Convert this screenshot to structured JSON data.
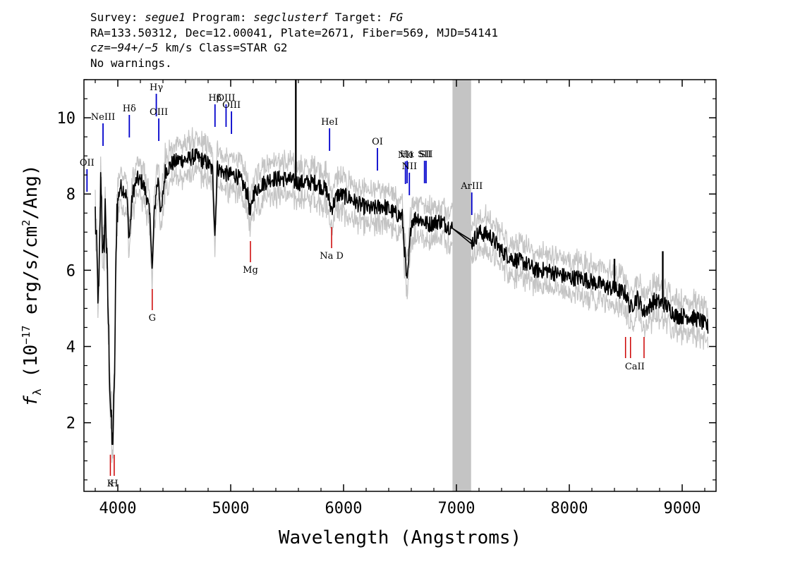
{
  "header": {
    "line1": {
      "survey_label": "Survey: ",
      "survey": "segue1",
      "program_label": " Program: ",
      "program": "segclusterf",
      "target_label": " Target: ",
      "target": "FG"
    },
    "line2": "RA=133.50312, Dec=12.00041, Plate=2671, Fiber=569, MJD=54141",
    "line3": {
      "cz_label": "cz",
      "cz_value": "=−94+/−5",
      "rest": " km/s Class=STAR G2"
    },
    "line4": "No warnings."
  },
  "chart_data": {
    "type": "line",
    "xlabel": "Wavelength (Angstroms)",
    "ylabel": "f_λ (10^-17 erg/s/cm^2/Ang)",
    "xlim": [
      3700,
      9300
    ],
    "ylim": [
      0.2,
      11.0
    ],
    "xticks": [
      4000,
      5000,
      6000,
      7000,
      8000,
      9000
    ],
    "yticks": [
      2,
      4,
      6,
      8,
      10
    ],
    "grid": false,
    "masked_region": [
      6965,
      7130
    ],
    "colors": {
      "flux": "#000000",
      "error_band": "#c4c4c4",
      "emission": "#0000cc",
      "absorption": "#cc0000",
      "sky": "#808080"
    },
    "series": [
      {
        "style": "smoothed-flux",
        "x": [
          3800,
          3830,
          3850,
          3870,
          3890,
          3910,
          3930,
          3950,
          3968,
          3990,
          4020,
          4060,
          4080,
          4101,
          4130,
          4170,
          4220,
          4260,
          4290,
          4305,
          4320,
          4340,
          4360,
          4383,
          4420,
          4480,
          4550,
          4620,
          4680,
          4740,
          4800,
          4840,
          4861,
          4880,
          4920,
          4980,
          5050,
          5100,
          5150,
          5175,
          5200,
          5250,
          5350,
          5450,
          5500,
          5577,
          5650,
          5750,
          5850,
          5890,
          5950,
          6050,
          6150,
          6250,
          6350,
          6450,
          6520,
          6563,
          6600,
          6650,
          6750,
          6850,
          6965,
          7130,
          7200,
          7300,
          7400,
          7500,
          7600,
          7700,
          7800,
          7900,
          8000,
          8100,
          8200,
          8300,
          8400,
          8498,
          8542,
          8600,
          8662,
          8750,
          8850,
          8950,
          9050,
          9150,
          9230
        ],
        "y": [
          7.5,
          5.0,
          8.6,
          6.0,
          7.8,
          5.4,
          3.0,
          1.3,
          2.6,
          7.6,
          8.2,
          8.1,
          7.9,
          6.8,
          8.0,
          8.4,
          8.3,
          7.9,
          7.2,
          5.9,
          7.3,
          8.1,
          8.4,
          7.4,
          8.6,
          8.8,
          8.9,
          8.9,
          9.0,
          8.9,
          8.8,
          8.6,
          6.9,
          8.7,
          8.6,
          8.5,
          8.5,
          8.3,
          8.0,
          7.4,
          8.0,
          8.2,
          8.4,
          8.4,
          8.4,
          8.3,
          8.3,
          8.3,
          8.1,
          7.6,
          8.0,
          7.9,
          7.7,
          7.6,
          7.7,
          7.5,
          7.4,
          5.6,
          7.3,
          7.4,
          7.2,
          7.3,
          7.1,
          6.7,
          7.0,
          6.9,
          6.5,
          6.3,
          6.2,
          6.0,
          6.0,
          5.9,
          5.8,
          5.8,
          5.7,
          5.6,
          5.5,
          5.4,
          5.0,
          5.3,
          4.9,
          5.2,
          5.1,
          4.8,
          4.8,
          4.7,
          4.5
        ]
      }
    ],
    "spikes": [
      {
        "x": 5577,
        "y": 11.0
      },
      {
        "x": 8400,
        "y": 6.3
      },
      {
        "x": 8828,
        "y": 6.5
      }
    ],
    "emission_lines": [
      {
        "label": "OII",
        "wavelength": 3727
      },
      {
        "label": "NeIII",
        "wavelength": 3869
      },
      {
        "label": "Hδ",
        "wavelength": 4102
      },
      {
        "label": "Hγ",
        "wavelength": 4341
      },
      {
        "label": "OIII",
        "wavelength": 4363
      },
      {
        "label": "Hβ",
        "wavelength": 4861
      },
      {
        "label": "OIII",
        "wavelength": 4959
      },
      {
        "label": "OIII",
        "wavelength": 5007
      },
      {
        "label": "HeI",
        "wavelength": 5876
      },
      {
        "label": "OI",
        "wavelength": 6300
      },
      {
        "label": "NII",
        "wavelength": 6548
      },
      {
        "label": "Hα",
        "wavelength": 6563
      },
      {
        "label": "NII",
        "wavelength": 6583
      },
      {
        "label": "SII",
        "wavelength": 6717
      },
      {
        "label": "SII",
        "wavelength": 6731
      },
      {
        "label": "ArIII",
        "wavelength": 7136
      }
    ],
    "absorption_lines": [
      {
        "label": "K",
        "wavelength": 3934
      },
      {
        "label": "H",
        "wavelength": 3968
      },
      {
        "label": "G",
        "wavelength": 4305
      },
      {
        "label": "Mg",
        "wavelength": 5175
      },
      {
        "label": "Na D",
        "wavelength": 5894
      },
      {
        "label": "CaII",
        "wavelength": 8498
      },
      {
        "label": "CaII",
        "wavelength": 8542
      },
      {
        "label": "CaII",
        "wavelength": 8662
      }
    ]
  }
}
